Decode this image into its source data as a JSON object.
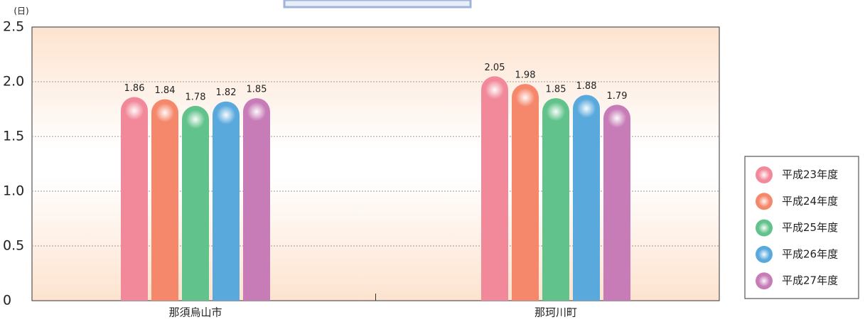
{
  "chart_data": {
    "type": "bar",
    "y_label": "(日)",
    "categories": [
      "那須烏山市",
      "那珂川町"
    ],
    "series": [
      {
        "name": "平成23年度",
        "color": "#f2899a",
        "values": [
          1.86,
          2.05
        ]
      },
      {
        "name": "平成24年度",
        "color": "#f5876a",
        "values": [
          1.84,
          1.98
        ]
      },
      {
        "name": "平成25年度",
        "color": "#61c28b",
        "values": [
          1.78,
          1.85
        ]
      },
      {
        "name": "平成26年度",
        "color": "#5aa9dd",
        "values": [
          1.82,
          1.88
        ]
      },
      {
        "name": "平成27年度",
        "color": "#c77cb7",
        "values": [
          1.85,
          1.79
        ]
      }
    ],
    "ylim": [
      0,
      2.5
    ],
    "yticks": [
      0,
      0.5,
      {
        "value": 1,
        "label": "1.0"
      },
      1.5,
      {
        "value": 2,
        "label": "2.0"
      },
      2.5
    ],
    "grid": true,
    "legend": "right"
  }
}
